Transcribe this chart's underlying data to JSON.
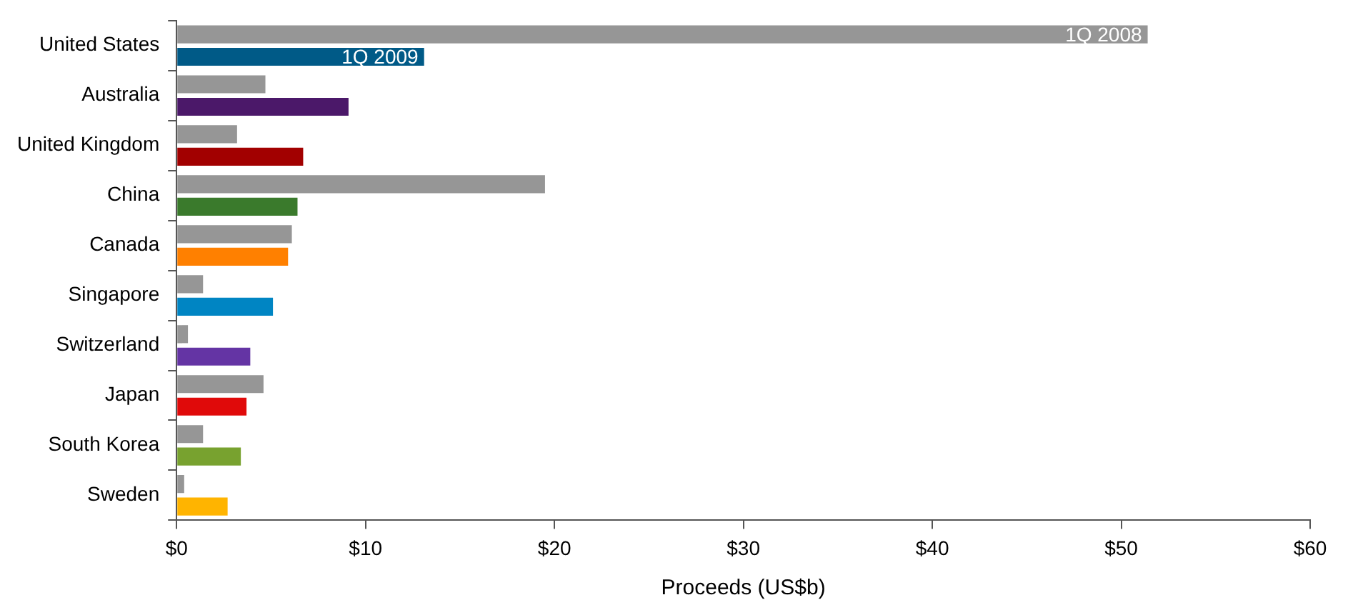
{
  "chart_data": {
    "type": "bar",
    "orientation": "horizontal",
    "xlabel": "Proceeds (US$b)",
    "categories": [
      "United States",
      "Australia",
      "United Kingdom",
      "China",
      "Canada",
      "Singapore",
      "Switzerland",
      "Japan",
      "South Korea",
      "Sweden"
    ],
    "series": [
      {
        "name": "1Q 2008",
        "color": "#969696",
        "values": [
          51.4,
          4.7,
          3.2,
          19.5,
          6.1,
          1.4,
          0.6,
          4.6,
          1.4,
          0.4
        ]
      },
      {
        "name": "1Q 2009",
        "colors": [
          "#005a87",
          "#4b1869",
          "#a20000",
          "#3a7a2c",
          "#ff8000",
          "#0085c3",
          "#6434a4",
          "#e00a0a",
          "#78a22f",
          "#ffb400"
        ],
        "values": [
          13.1,
          9.1,
          6.7,
          6.4,
          5.9,
          5.1,
          3.9,
          3.7,
          3.4,
          2.7
        ]
      }
    ],
    "xlim": [
      0,
      60
    ],
    "xticks": [
      {
        "value": 0,
        "label": "$0"
      },
      {
        "value": 10,
        "label": "$10"
      },
      {
        "value": 20,
        "label": "$20"
      },
      {
        "value": 30,
        "label": "$30"
      },
      {
        "value": 40,
        "label": "$40"
      },
      {
        "value": 50,
        "label": "$50"
      },
      {
        "value": 60,
        "label": "$60"
      }
    ],
    "grid": false,
    "legend": false
  }
}
